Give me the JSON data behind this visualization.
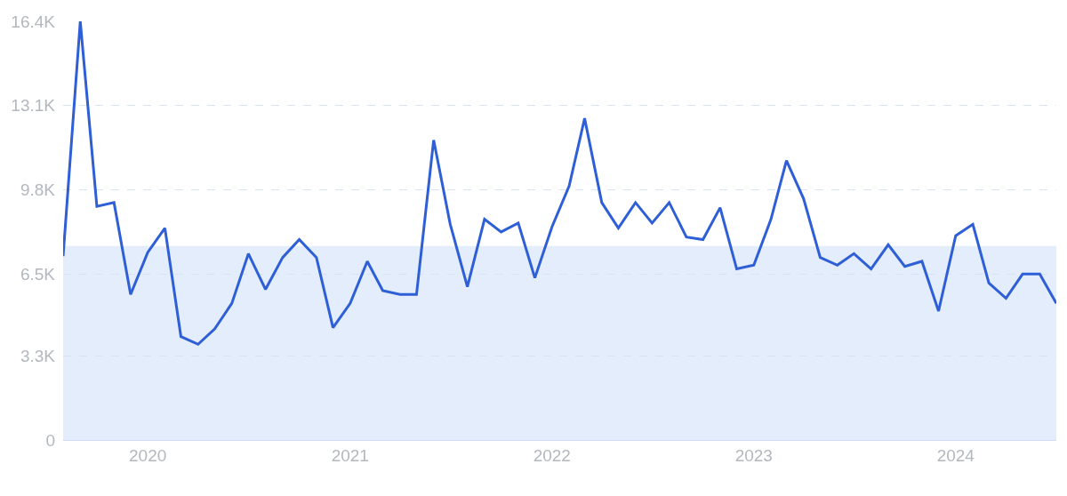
{
  "chart_data": {
    "type": "line",
    "x": [
      "2019-08",
      "2019-09",
      "2019-10",
      "2019-11",
      "2019-12",
      "2020-01",
      "2020-02",
      "2020-03",
      "2020-04",
      "2020-05",
      "2020-06",
      "2020-07",
      "2020-08",
      "2020-09",
      "2020-10",
      "2020-11",
      "2020-12",
      "2021-01",
      "2021-02",
      "2021-03",
      "2021-04",
      "2021-05",
      "2021-06",
      "2021-07",
      "2021-08",
      "2021-09",
      "2021-10",
      "2021-11",
      "2021-12",
      "2022-01",
      "2022-02",
      "2022-03",
      "2022-04",
      "2022-05",
      "2022-06",
      "2022-07",
      "2022-08",
      "2022-09",
      "2022-10",
      "2022-11",
      "2022-12",
      "2023-01",
      "2023-02",
      "2023-03",
      "2023-04",
      "2023-05",
      "2023-06",
      "2023-07",
      "2023-08",
      "2023-09",
      "2023-10",
      "2023-11",
      "2023-12",
      "2024-01",
      "2024-02",
      "2024-03",
      "2024-04",
      "2024-05",
      "2024-06",
      "2024-07"
    ],
    "series": [
      {
        "color": "#2f5fd6",
        "values": [
          7200,
          16400,
          9150,
          9300,
          5700,
          7350,
          8300,
          4050,
          3750,
          4350,
          5350,
          7300,
          5900,
          7150,
          7850,
          7150,
          4400,
          5350,
          7000,
          5850,
          5700,
          5700,
          11750,
          8450,
          6000,
          8650,
          8150,
          8500,
          6350,
          8350,
          9950,
          12600,
          9300,
          8300,
          9300,
          8500,
          9300,
          7950,
          7850,
          9100,
          6700,
          6850,
          8650,
          10950,
          9450,
          7150,
          6850,
          7300,
          6700,
          7650,
          6800,
          7000,
          5050,
          8000,
          8450,
          6150,
          5550,
          6500,
          6500,
          5350
        ]
      }
    ],
    "xlim": [
      "2019-08",
      "2024-07"
    ],
    "xticks": [
      "2020",
      "2021",
      "2022",
      "2023",
      "2024"
    ],
    "ylim": [
      0,
      16400
    ],
    "yticks": [
      0,
      {
        "value": 3300,
        "label": "3.3K"
      },
      {
        "value": 6500,
        "label": "6.5K"
      },
      {
        "value": 9800,
        "label": "9.8K"
      },
      {
        "value": 13100,
        "label": "13.1K"
      },
      {
        "value": 16400,
        "label": "16.4K"
      }
    ],
    "bands": [
      {
        "axis": "y",
        "from": 0,
        "to": 7600,
        "color": "#e3edfb"
      }
    ],
    "grid": "y",
    "marker": "none",
    "line_style": "solid"
  }
}
